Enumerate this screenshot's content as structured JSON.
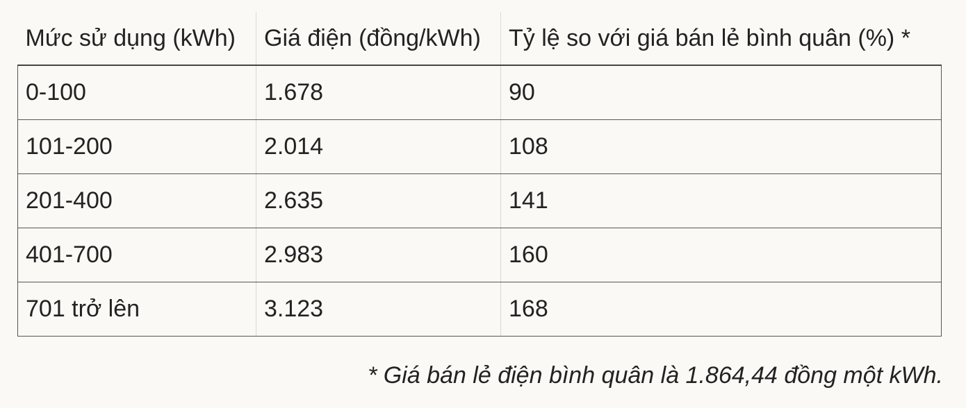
{
  "table": {
    "headers": [
      "Mức sử dụng (kWh)",
      "Giá điện (đồng/kWh)",
      "Tỷ lệ so với giá bán lẻ bình quân (%) *"
    ],
    "rows": [
      [
        "0-100",
        "1.678",
        "90"
      ],
      [
        "101-200",
        "2.014",
        "108"
      ],
      [
        "201-400",
        "2.635",
        "141"
      ],
      [
        "401-700",
        "2.983",
        "160"
      ],
      [
        "701 trở lên",
        "3.123",
        "168"
      ]
    ]
  },
  "footnote": "* Giá bán lẻ điện bình quân là 1.864,44 đồng một kWh."
}
